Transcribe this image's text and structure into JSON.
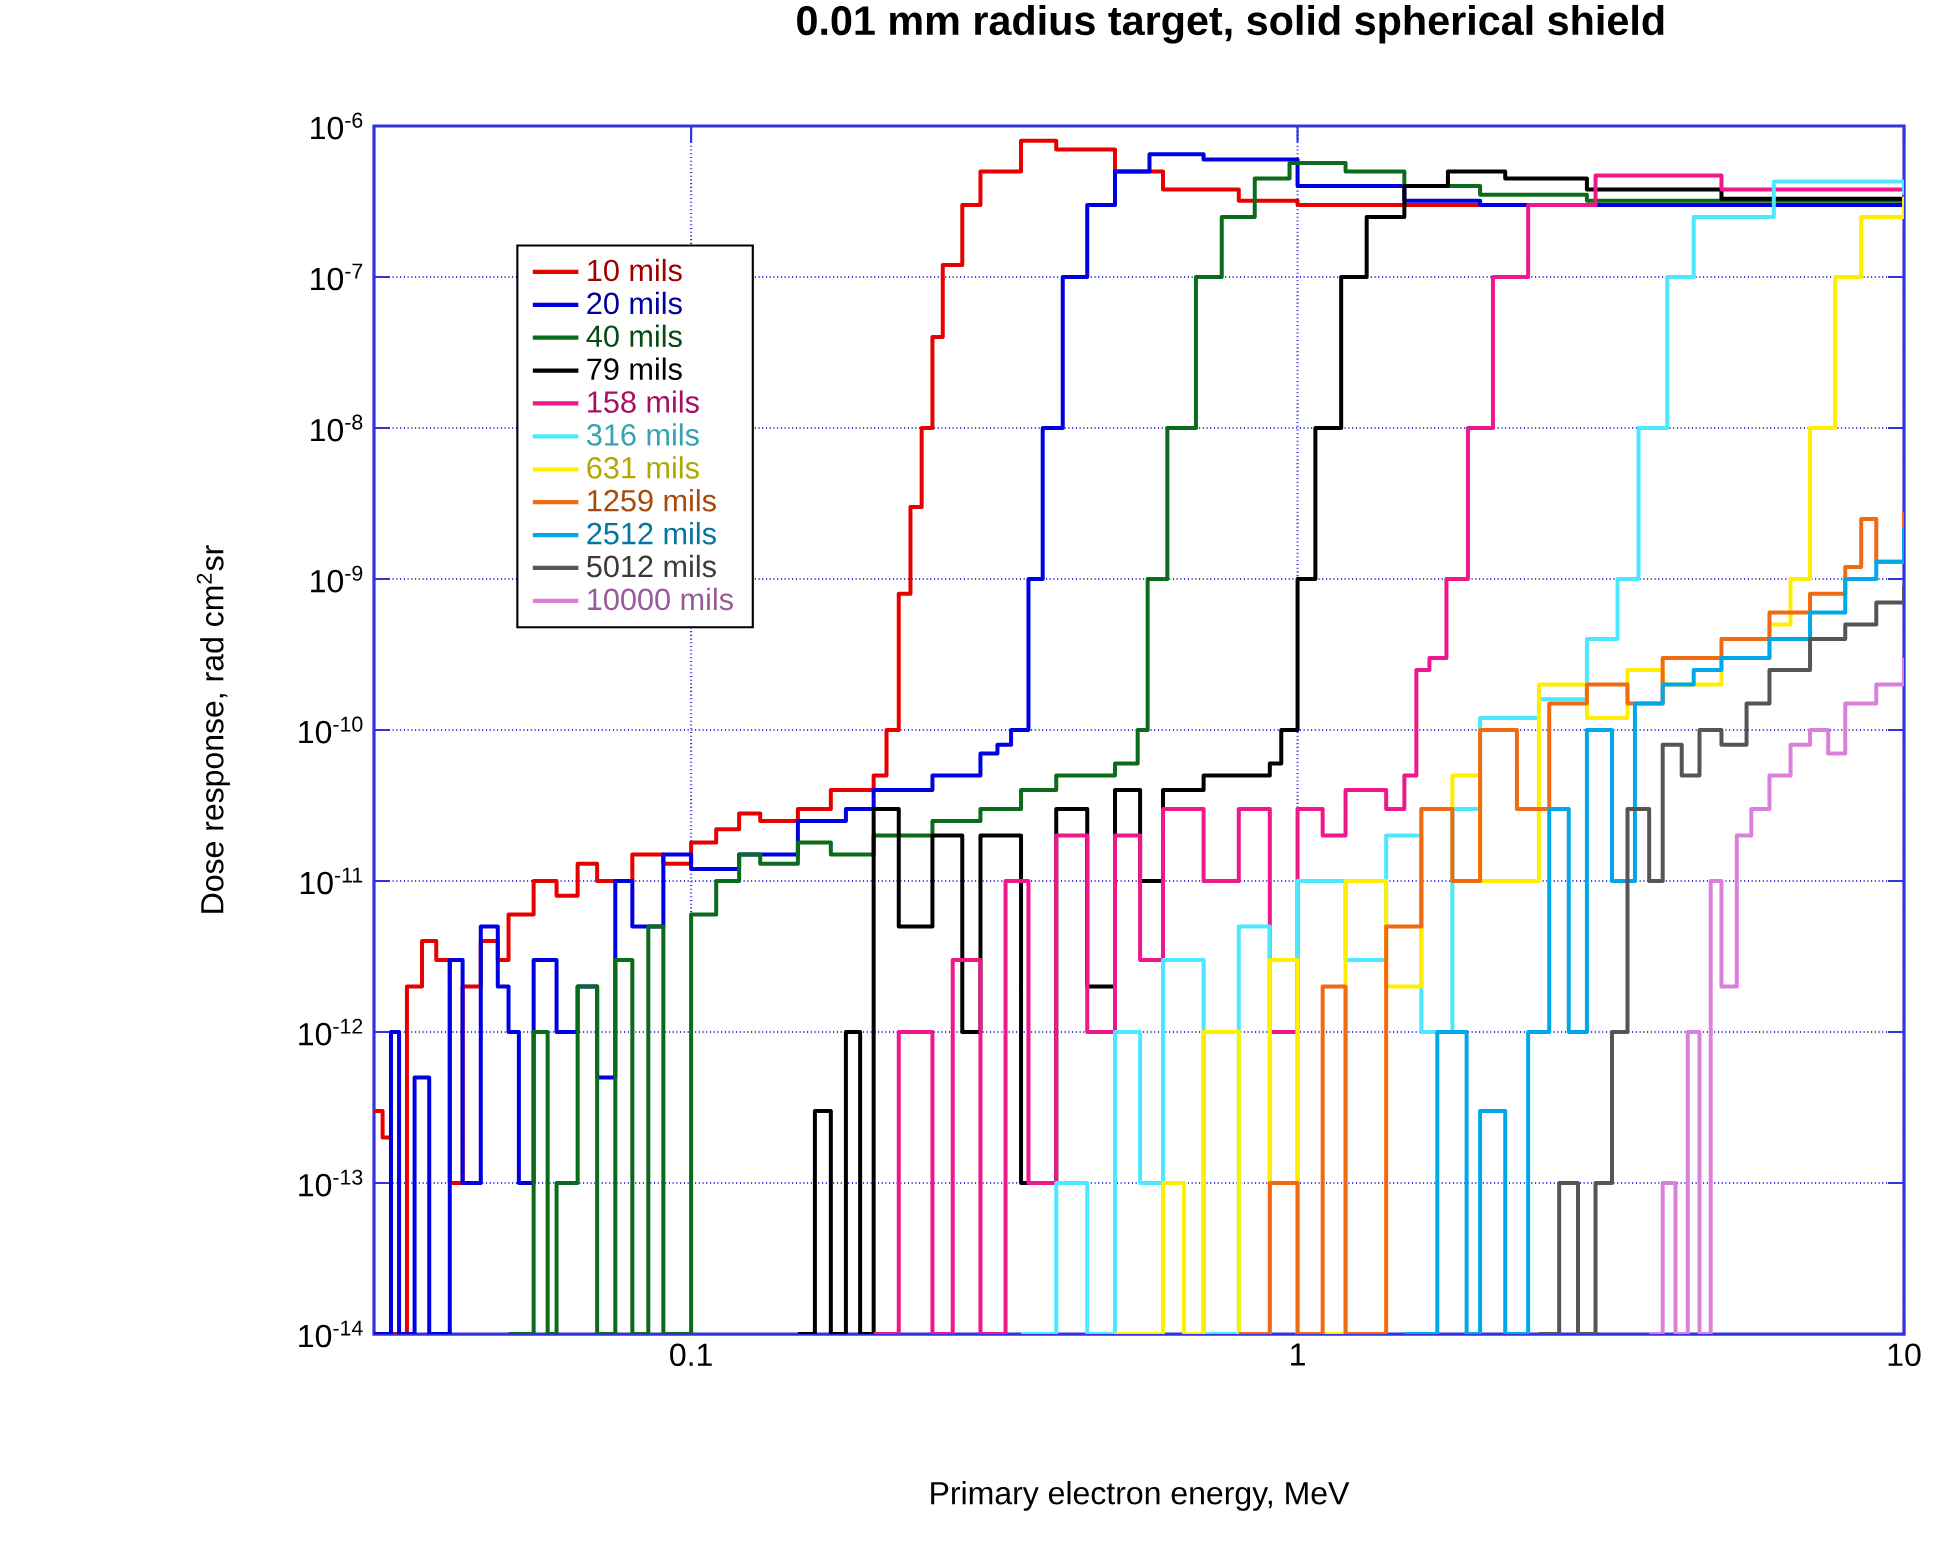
{
  "chart_data": {
    "type": "step",
    "title": "0.01 mm radius target, solid spherical shield",
    "xlabel": "Primary electron energy, MeV",
    "ylabel": "Dose response, rad cm$^{2}$sr",
    "log": "xy",
    "grid": true,
    "legend": "top left",
    "line_style": "solid",
    "xlim": [
      0.03,
      10
    ],
    "ylim": [
      1e-14,
      1e-06
    ],
    "xticks": [
      0.1,
      1,
      10
    ],
    "yticks": [
      {
        "value": 1e-14,
        "label": "10$^{-14}$"
      },
      {
        "value": 1e-13,
        "label": "10$^{-13}$"
      },
      {
        "value": 1e-12,
        "label": "10$^{-12}$"
      },
      {
        "value": 1e-11,
        "label": "10$^{-11}$"
      },
      {
        "value": 1e-10,
        "label": "10$^{-10}$"
      },
      {
        "value": 1e-09,
        "label": "10$^{-9}$"
      },
      {
        "value": 1e-08,
        "label": "10$^{-8}$"
      },
      {
        "value": 1e-07,
        "label": "10$^{-7}$"
      },
      {
        "value": 1e-06,
        "label": "10$^{-6}$"
      }
    ],
    "series": [
      {
        "name": "10 mils",
        "color": "#e60000",
        "x": [
          0.03,
          0.031,
          0.032,
          0.033,
          0.034,
          0.036,
          0.038,
          0.04,
          0.042,
          0.045,
          0.048,
          0.05,
          0.055,
          0.06,
          0.065,
          0.07,
          0.08,
          0.09,
          0.1,
          0.11,
          0.12,
          0.13,
          0.15,
          0.17,
          0.19,
          0.2,
          0.21,
          0.22,
          0.23,
          0.24,
          0.25,
          0.26,
          0.28,
          0.3,
          0.35,
          0.4,
          0.5,
          0.6,
          0.8,
          1,
          2,
          5,
          10
        ],
        "values": [
          3e-13,
          2e-13,
          1e-14,
          1e-14,
          2e-12,
          4e-12,
          3e-12,
          1e-13,
          2e-12,
          4e-12,
          3e-12,
          6e-12,
          1e-11,
          8e-12,
          1.3e-11,
          1e-11,
          1.5e-11,
          1.3e-11,
          1.8e-11,
          2.2e-11,
          2.8e-11,
          2.5e-11,
          3e-11,
          4e-11,
          4e-11,
          5e-11,
          1e-10,
          8e-10,
          3e-09,
          1e-08,
          4e-08,
          1.2e-07,
          3e-07,
          5e-07,
          8e-07,
          7e-07,
          5e-07,
          3.8e-07,
          3.2e-07,
          3e-07,
          3e-07,
          3e-07,
          3e-07
        ]
      },
      {
        "name": "20 mils",
        "color": "#0000e0",
        "x": [
          0.03,
          0.031,
          0.032,
          0.033,
          0.035,
          0.037,
          0.04,
          0.042,
          0.045,
          0.048,
          0.05,
          0.052,
          0.055,
          0.06,
          0.065,
          0.07,
          0.075,
          0.08,
          0.09,
          0.1,
          0.12,
          0.15,
          0.18,
          0.2,
          0.25,
          0.3,
          0.32,
          0.337,
          0.36,
          0.38,
          0.41,
          0.45,
          0.5,
          0.57,
          0.7,
          1,
          1.5,
          2,
          5,
          10
        ],
        "values": [
          1e-14,
          1e-14,
          1e-12,
          1e-14,
          5e-13,
          1e-14,
          3e-12,
          1e-13,
          5e-12,
          2e-12,
          1e-12,
          1e-13,
          3e-12,
          1e-12,
          2e-12,
          5e-13,
          1e-11,
          5e-12,
          1.5e-11,
          1.2e-11,
          1.5e-11,
          2.5e-11,
          3e-11,
          4e-11,
          5e-11,
          7e-11,
          8e-11,
          1e-10,
          1e-09,
          1e-08,
          1e-07,
          3e-07,
          5e-07,
          6.5e-07,
          6e-07,
          4e-07,
          3.2e-07,
          3e-07,
          3e-07,
          3e-07
        ]
      },
      {
        "name": "40 mils",
        "color": "#0b6b1b",
        "x": [
          0.05,
          0.055,
          0.058,
          0.06,
          0.065,
          0.07,
          0.075,
          0.08,
          0.085,
          0.09,
          0.1,
          0.11,
          0.12,
          0.13,
          0.15,
          0.17,
          0.2,
          0.25,
          0.3,
          0.35,
          0.4,
          0.45,
          0.5,
          0.545,
          0.566,
          0.61,
          0.68,
          0.75,
          0.85,
          0.97,
          1.2,
          1.5,
          2,
          3,
          5,
          10
        ],
        "values": [
          1e-14,
          1e-12,
          1e-14,
          1e-13,
          2e-12,
          1e-14,
          3e-12,
          1e-14,
          5e-12,
          1e-14,
          6e-12,
          1e-11,
          1.5e-11,
          1.3e-11,
          1.8e-11,
          1.5e-11,
          2e-11,
          2.5e-11,
          3e-11,
          4e-11,
          5e-11,
          5e-11,
          6e-11,
          1e-10,
          1e-09,
          1e-08,
          1e-07,
          2.5e-07,
          4.5e-07,
          5.7e-07,
          5e-07,
          4e-07,
          3.5e-07,
          3.2e-07,
          3.2e-07,
          3.2e-07
        ]
      },
      {
        "name": "79 mils",
        "color": "#000000",
        "x": [
          0.15,
          0.16,
          0.17,
          0.18,
          0.19,
          0.2,
          0.22,
          0.25,
          0.28,
          0.3,
          0.35,
          0.4,
          0.45,
          0.5,
          0.55,
          0.6,
          0.7,
          0.8,
          0.9,
          0.94,
          1.0,
          1.07,
          1.18,
          1.3,
          1.5,
          1.77,
          2.2,
          3,
          5,
          10
        ],
        "values": [
          1e-14,
          3e-13,
          1e-14,
          1e-12,
          1e-14,
          3e-11,
          5e-12,
          2e-11,
          1e-12,
          2e-11,
          1e-13,
          3e-11,
          2e-12,
          4e-11,
          1e-11,
          4e-11,
          5e-11,
          5e-11,
          6e-11,
          1e-10,
          1e-09,
          1e-08,
          1e-07,
          2.5e-07,
          4e-07,
          5e-07,
          4.5e-07,
          3.8e-07,
          3.3e-07,
          3.2e-07
        ]
      },
      {
        "name": "158 mils",
        "color": "#f0168c",
        "x": [
          0.2,
          0.22,
          0.25,
          0.27,
          0.3,
          0.33,
          0.36,
          0.4,
          0.45,
          0.5,
          0.55,
          0.6,
          0.7,
          0.8,
          0.9,
          1,
          1.1,
          1.2,
          1.4,
          1.5,
          1.57,
          1.65,
          1.76,
          1.91,
          2.1,
          2.4,
          3.1,
          5,
          10
        ],
        "values": [
          1e-14,
          1e-12,
          1e-14,
          3e-12,
          1e-14,
          1e-11,
          1e-13,
          2e-11,
          1e-12,
          2e-11,
          3e-12,
          3e-11,
          1e-11,
          3e-11,
          1e-12,
          3e-11,
          2e-11,
          4e-11,
          3e-11,
          5e-11,
          2.5e-10,
          3e-10,
          1e-09,
          1e-08,
          1e-07,
          3e-07,
          4.7e-07,
          3.8e-07,
          3.3e-07
        ]
      },
      {
        "name": "316 mils",
        "color": "#4de8ff",
        "x": [
          0.35,
          0.4,
          0.45,
          0.5,
          0.55,
          0.6,
          0.7,
          0.8,
          0.9,
          1,
          1.2,
          1.4,
          1.6,
          1.8,
          2,
          2.5,
          3,
          3.37,
          3.65,
          4.07,
          4.5,
          6.1,
          10
        ],
        "values": [
          1e-14,
          1e-13,
          1e-14,
          1e-12,
          1e-13,
          3e-12,
          1e-14,
          5e-12,
          1e-13,
          1e-11,
          3e-12,
          2e-11,
          1e-12,
          3e-11,
          1.2e-10,
          1.6e-10,
          4e-10,
          1e-09,
          1e-08,
          1e-07,
          2.5e-07,
          4.3e-07,
          3.5e-07
        ]
      },
      {
        "name": "631 mils",
        "color": "#ffee00",
        "x": [
          0.5,
          0.6,
          0.65,
          0.7,
          0.8,
          0.9,
          1,
          1.2,
          1.4,
          1.6,
          1.8,
          2,
          2.5,
          3,
          3.5,
          4,
          5,
          6,
          6.5,
          7,
          7.7,
          8.5,
          10
        ],
        "values": [
          1e-14,
          1e-13,
          1e-14,
          1e-12,
          1e-14,
          3e-12,
          1e-14,
          1e-11,
          2e-12,
          3e-11,
          5e-11,
          1e-11,
          2e-10,
          1.2e-10,
          2.5e-10,
          2e-10,
          3e-10,
          5e-10,
          1e-09,
          1e-08,
          1e-07,
          2.5e-07,
          3.4e-07
        ]
      },
      {
        "name": "1259 mils",
        "color": "#f26a10",
        "x": [
          0.8,
          0.9,
          1,
          1.1,
          1.2,
          1.4,
          1.6,
          1.8,
          2,
          2.3,
          2.6,
          3,
          3.5,
          4,
          5,
          6,
          7,
          8,
          8.5,
          9,
          10
        ],
        "values": [
          1e-14,
          1e-13,
          1e-14,
          2e-12,
          1e-14,
          5e-12,
          3e-11,
          1e-11,
          1e-10,
          3e-11,
          1.5e-10,
          2e-10,
          1.5e-10,
          3e-10,
          4e-10,
          6e-10,
          8e-10,
          1.2e-09,
          2.5e-09,
          1.3e-09,
          2.8e-09
        ]
      },
      {
        "name": "2512 mils",
        "color": "#00a8e8",
        "x": [
          1.5,
          1.7,
          1.9,
          2,
          2.2,
          2.4,
          2.6,
          2.8,
          3,
          3.3,
          3.6,
          4,
          4.5,
          5,
          6,
          7,
          8,
          9,
          10
        ],
        "values": [
          1e-14,
          1e-12,
          1e-14,
          3e-13,
          1e-14,
          1e-12,
          3e-11,
          1e-12,
          1e-10,
          1e-11,
          1.5e-10,
          2e-10,
          2.5e-10,
          3e-10,
          4e-10,
          6e-10,
          1e-09,
          1.3e-09,
          2.2e-09
        ]
      },
      {
        "name": "5012 mils",
        "color": "#555555",
        "x": [
          2.5,
          2.7,
          2.9,
          3.1,
          3.3,
          3.5,
          3.8,
          4,
          4.3,
          4.6,
          5,
          5.5,
          6,
          7,
          8,
          9,
          10
        ],
        "values": [
          1e-14,
          1e-13,
          1e-14,
          1e-13,
          1e-12,
          3e-11,
          1e-11,
          8e-11,
          5e-11,
          1e-10,
          8e-11,
          1.5e-10,
          2.5e-10,
          4e-10,
          5e-10,
          7e-10,
          9e-10
        ]
      },
      {
        "name": "10000 mils",
        "color": "#da80da",
        "x": [
          3.8,
          4,
          4.2,
          4.4,
          4.6,
          4.8,
          5,
          5.3,
          5.6,
          6,
          6.5,
          7,
          7.5,
          8,
          9,
          10
        ],
        "values": [
          1e-14,
          1e-13,
          1e-14,
          1e-12,
          1e-14,
          1e-11,
          2e-12,
          2e-11,
          3e-11,
          5e-11,
          8e-11,
          1e-10,
          7e-11,
          1.5e-10,
          2e-10,
          3e-10
        ]
      }
    ]
  }
}
